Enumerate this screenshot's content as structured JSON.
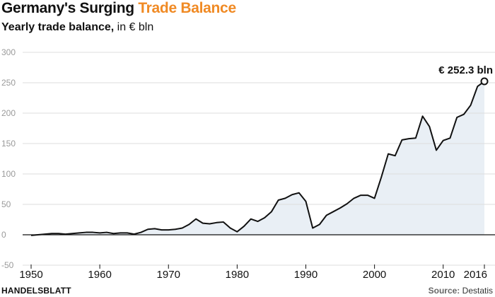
{
  "title": {
    "main": "Germany's Surging ",
    "accent": "Trade Balance"
  },
  "subtitle": {
    "bold": "Yearly trade balance,",
    "rest": " in € bln"
  },
  "footer": {
    "brand": "HANDELSBLATT",
    "source_label": "Source:",
    "source_value": " Destatis"
  },
  "colors": {
    "accent": "#f08a24",
    "line": "#111111",
    "area": "#e9eff5",
    "grid": "#dddddd"
  },
  "chart_data": {
    "type": "area",
    "title": "Germany's Surging Trade Balance",
    "ylabel": "Yearly trade balance, in € bln",
    "xlabel": "",
    "ylim": [
      -50,
      300
    ],
    "xlim": [
      1950,
      2016
    ],
    "y_ticks": [
      "-50",
      "0",
      "50",
      "100",
      "150",
      "200",
      "250",
      "300"
    ],
    "x_ticks": [
      "1950",
      "1960",
      "1970",
      "1980",
      "1990",
      "2000",
      "2010",
      "2016"
    ],
    "grid": true,
    "annotation": {
      "text": "€ 252.3 bln",
      "x": 2016,
      "y": 252.3
    },
    "x": [
      1950,
      1951,
      1952,
      1953,
      1954,
      1955,
      1956,
      1957,
      1958,
      1959,
      1960,
      1961,
      1962,
      1963,
      1964,
      1965,
      1966,
      1967,
      1968,
      1969,
      1970,
      1971,
      1972,
      1973,
      1974,
      1975,
      1976,
      1977,
      1978,
      1979,
      1980,
      1981,
      1982,
      1983,
      1984,
      1985,
      1986,
      1987,
      1988,
      1989,
      1990,
      1991,
      1992,
      1993,
      1994,
      1995,
      1996,
      1997,
      1998,
      1999,
      2000,
      2001,
      2002,
      2003,
      2004,
      2005,
      2006,
      2007,
      2008,
      2009,
      2010,
      2011,
      2012,
      2013,
      2014,
      2015,
      2016
    ],
    "values": [
      -1,
      0,
      1,
      2,
      2,
      1,
      2,
      3,
      4,
      4,
      3,
      4,
      2,
      3,
      3,
      1,
      4,
      9,
      10,
      8,
      8,
      9,
      11,
      17,
      26,
      19,
      18,
      20,
      21,
      11,
      5,
      14,
      26,
      22,
      28,
      38,
      57,
      60,
      66,
      69,
      55,
      11,
      17,
      32,
      38,
      44,
      51,
      60,
      65,
      65,
      60,
      95,
      133,
      130,
      156,
      158,
      159,
      195,
      178,
      139,
      155,
      159,
      193,
      198,
      213,
      244,
      252.3
    ]
  }
}
